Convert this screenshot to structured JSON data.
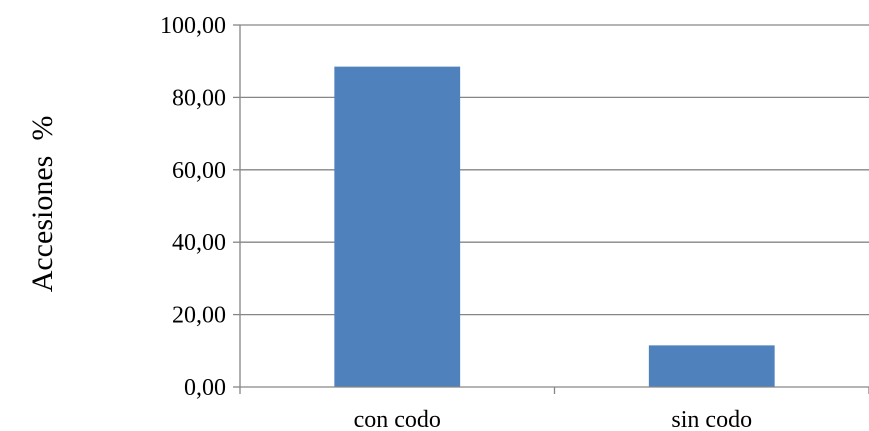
{
  "chart_data": {
    "type": "bar",
    "categories": [
      "con codo",
      "sin codo"
    ],
    "values": [
      88.5,
      11.5
    ],
    "title": "",
    "xlabel": "",
    "ylabel": "Accesiones  %",
    "ylim": [
      0,
      100
    ],
    "yticks": [
      "0,00",
      "20,00",
      "40,00",
      "60,00",
      "80,00",
      "100,00"
    ],
    "grid": true,
    "legend": "none",
    "colors": {
      "bar": "#4F81BD",
      "grid": "#868686",
      "axis": "#868686",
      "text": "#000000"
    }
  }
}
